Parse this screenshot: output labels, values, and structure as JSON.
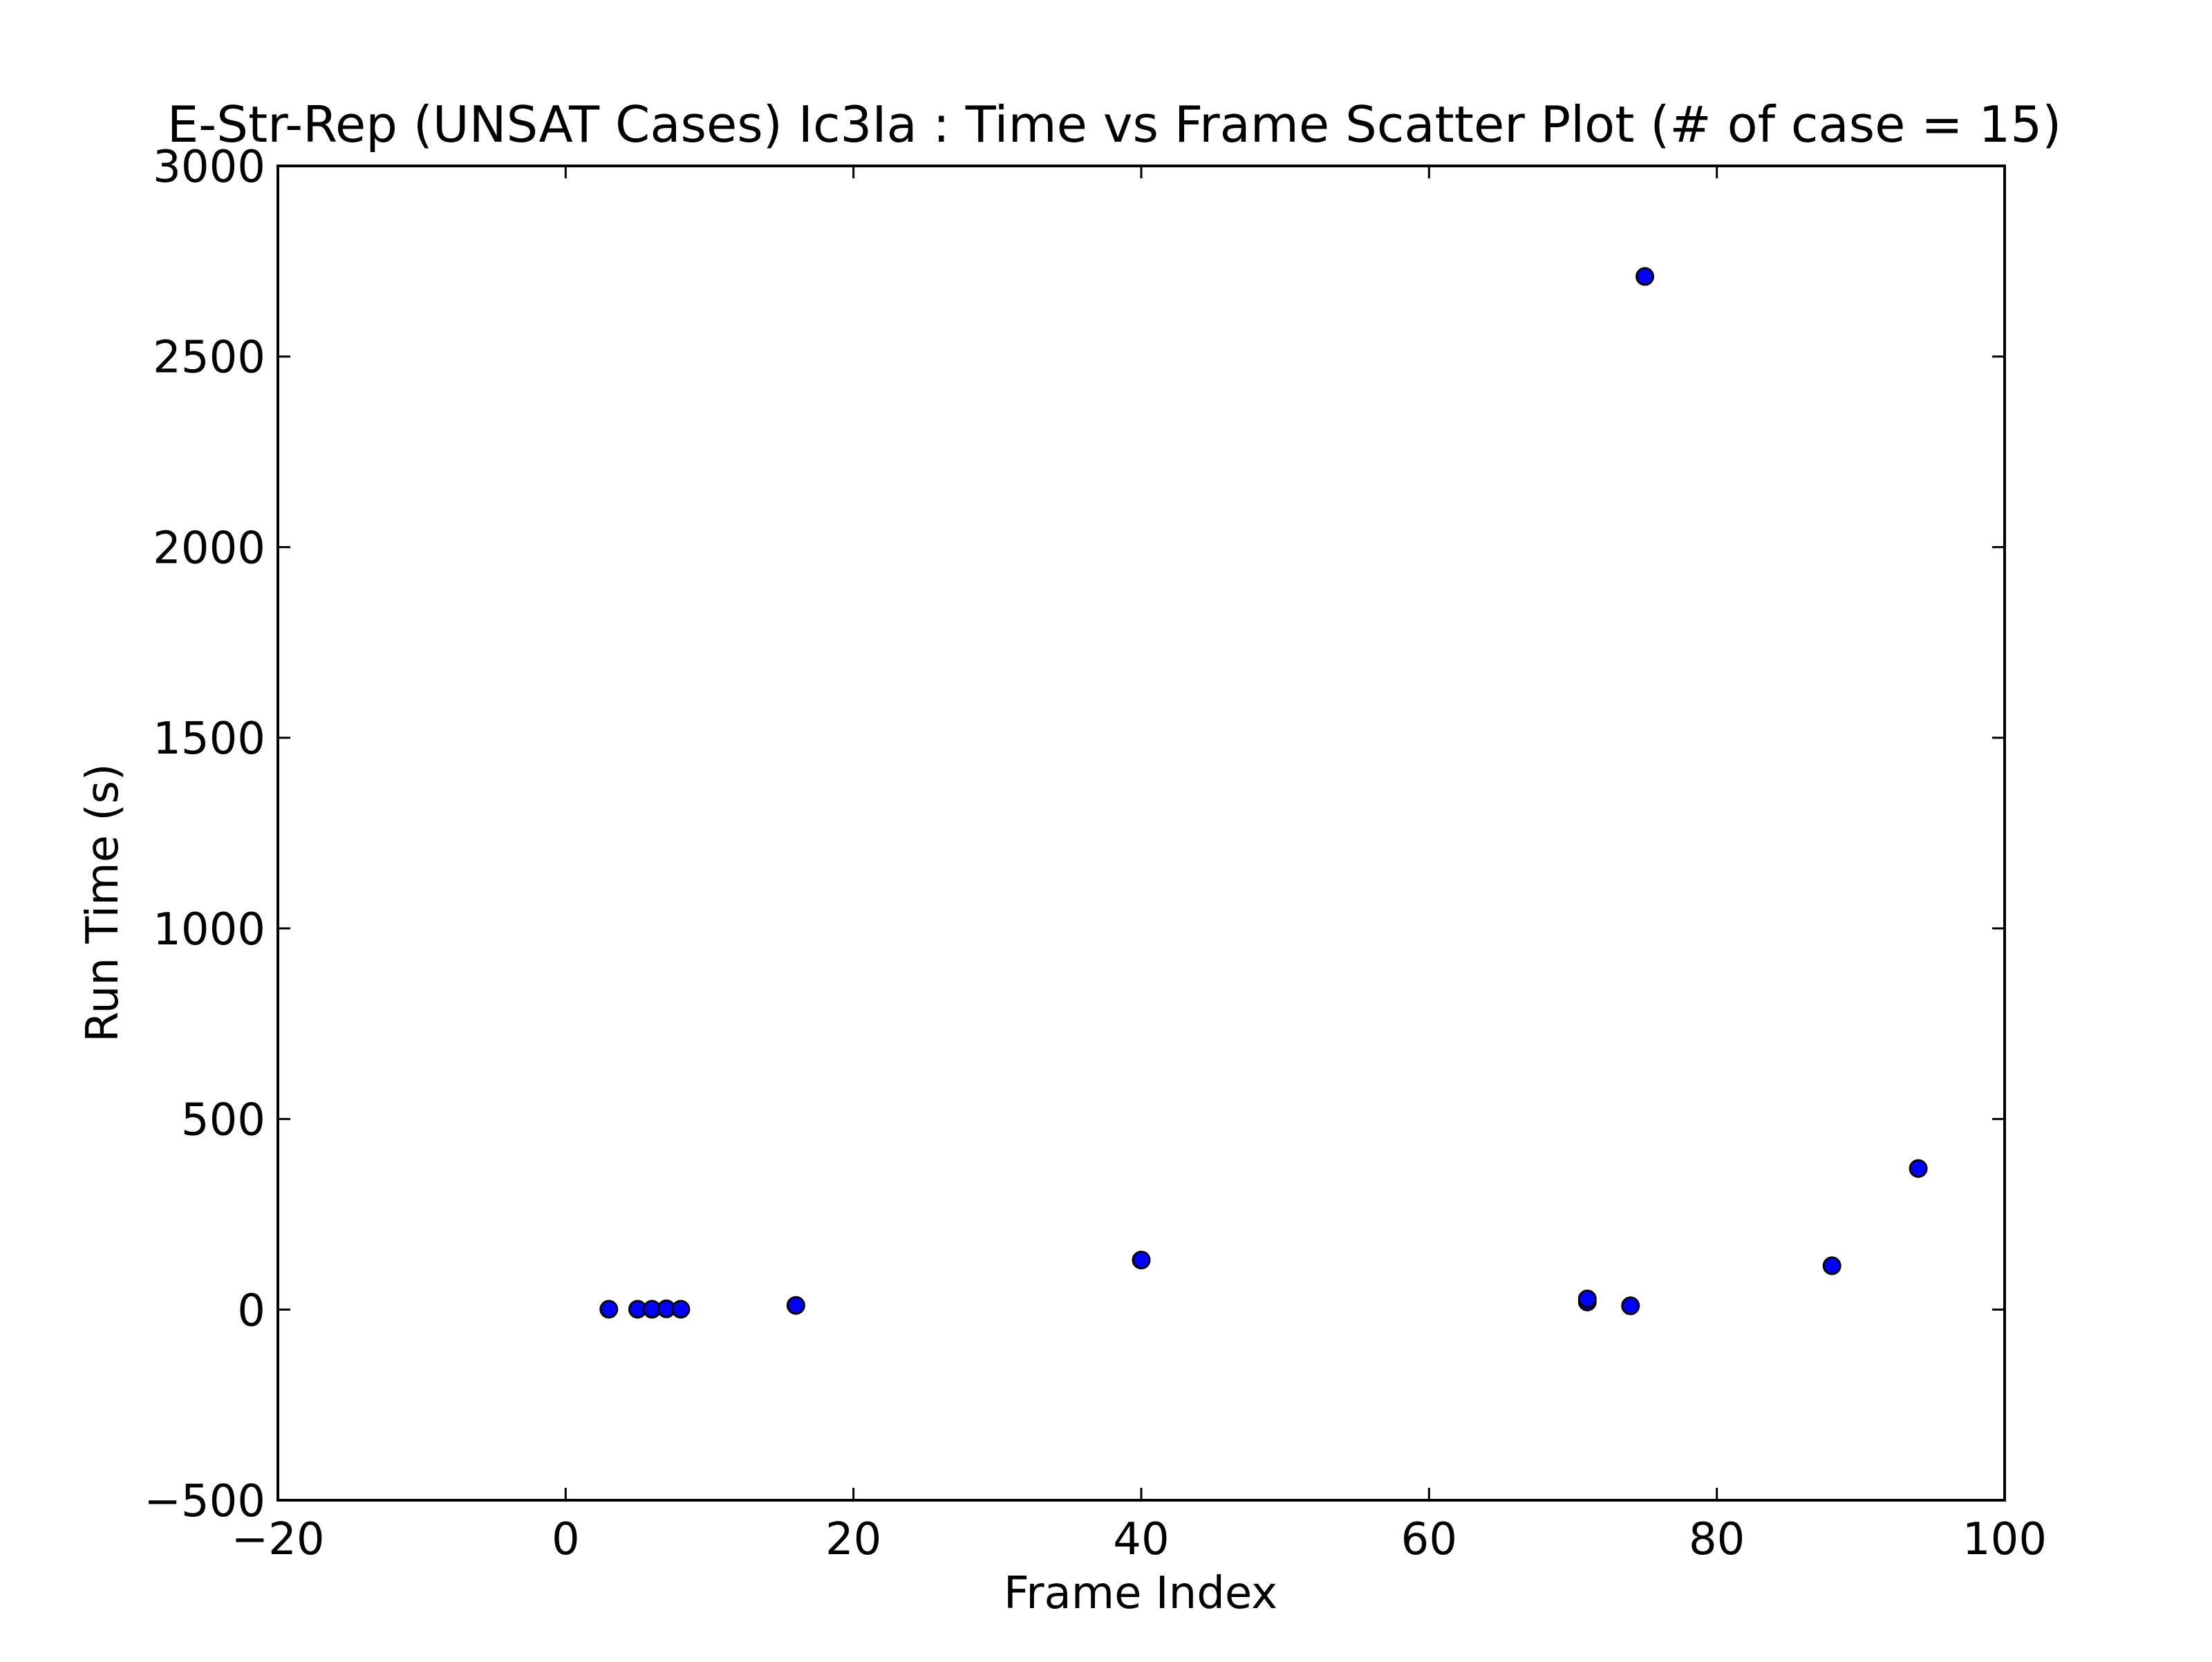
{
  "chart_data": {
    "type": "scatter",
    "title": "E-Str-Rep (UNSAT Cases) Ic3Ia : Time vs Frame Scatter Plot (# of case = 15)",
    "xlabel": "Frame Index",
    "ylabel": "Run Time (s)",
    "xlim": [
      -20,
      100
    ],
    "ylim": [
      -500,
      3000
    ],
    "x_ticks": [
      -20,
      0,
      20,
      40,
      60,
      80,
      100
    ],
    "x_tick_labels": [
      "−20",
      "0",
      "20",
      "40",
      "60",
      "80",
      "100"
    ],
    "y_ticks": [
      -500,
      0,
      500,
      1000,
      1500,
      2000,
      2500,
      3000
    ],
    "y_tick_labels": [
      "−500",
      "0",
      "500",
      "1000",
      "1500",
      "2000",
      "2500",
      "3000"
    ],
    "grid": false,
    "legend": "none",
    "marker_color": "#0000ff",
    "marker_edge_color": "#000000",
    "points": [
      {
        "x": 3,
        "y": 1
      },
      {
        "x": 5,
        "y": 1
      },
      {
        "x": 6,
        "y": 1
      },
      {
        "x": 7,
        "y": 2
      },
      {
        "x": 8,
        "y": 1
      },
      {
        "x": 16,
        "y": 11
      },
      {
        "x": 40,
        "y": 130
      },
      {
        "x": 71,
        "y": 20
      },
      {
        "x": 71,
        "y": 28
      },
      {
        "x": 74,
        "y": 10
      },
      {
        "x": 75,
        "y": 2710
      },
      {
        "x": 88,
        "y": 115
      },
      {
        "x": 94,
        "y": 370
      }
    ]
  }
}
